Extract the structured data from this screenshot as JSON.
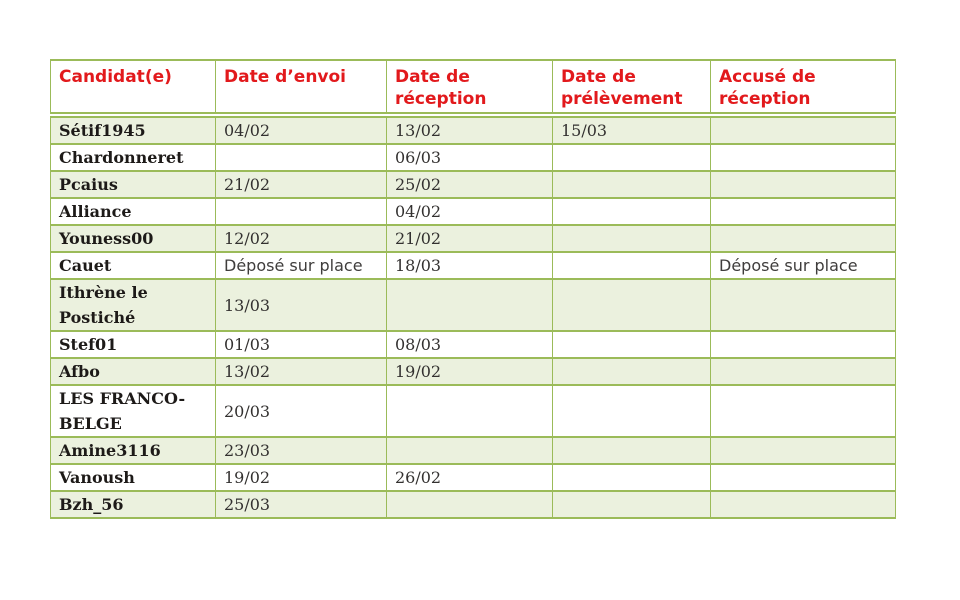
{
  "colors": {
    "table_border": "#9bbb59",
    "row_shade": "#ebf1de",
    "header_text": "#e2191c",
    "name_text": "#1d1a18",
    "date_text": "#333130",
    "page_background": "#ffffff"
  },
  "table": {
    "headers": [
      "Candidat(e)",
      "Date d’envoi",
      "Date de réception",
      "Date de prélèvement",
      "Accusé de réception"
    ],
    "rows": [
      [
        "Sétif1945",
        "04/02",
        "13/02",
        "15/03",
        ""
      ],
      [
        "Chardonneret",
        "",
        "06/03",
        "",
        ""
      ],
      [
        "Pcaius",
        "21/02",
        "25/02",
        "",
        ""
      ],
      [
        "Alliance",
        "",
        "04/02",
        "",
        ""
      ],
      [
        "Youness00",
        "12/02",
        "21/02",
        "",
        ""
      ],
      [
        "Cauet",
        "Déposé sur place",
        "18/03",
        "",
        "Déposé sur place"
      ],
      [
        "Ithrène le Postiché",
        "13/03",
        "",
        "",
        ""
      ],
      [
        "Stef01",
        "01/03",
        "08/03",
        "",
        ""
      ],
      [
        "Afbo",
        "13/02",
        "19/02",
        "",
        ""
      ],
      [
        "LES FRANCO-BELGE",
        "20/03",
        "",
        "",
        ""
      ],
      [
        "Amine3116",
        "23/03",
        "",
        "",
        ""
      ],
      [
        "Vanoush",
        "19/02",
        "26/02",
        "",
        ""
      ],
      [
        "Bzh_56",
        "25/03",
        "",
        "",
        ""
      ]
    ]
  }
}
